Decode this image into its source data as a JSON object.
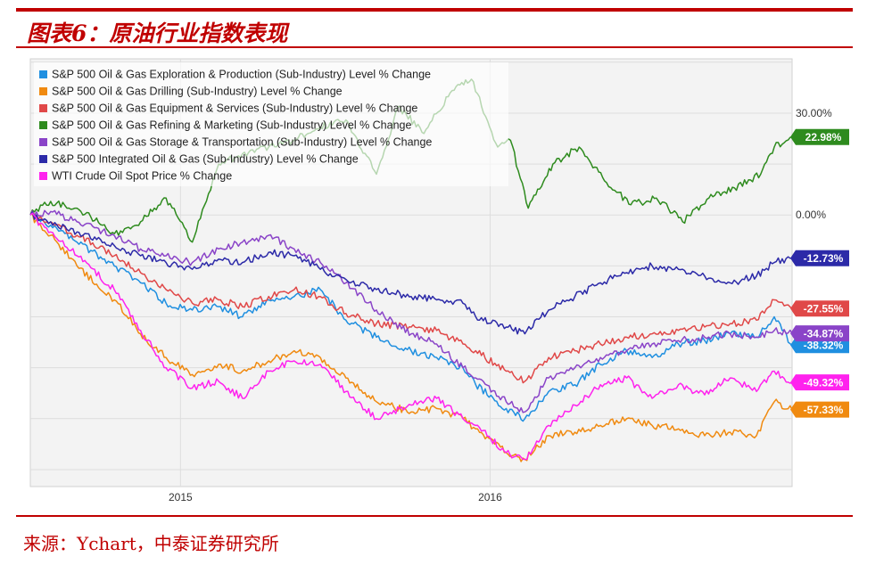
{
  "figure_title": "图表6：原油行业指数表现",
  "source": "来源：Ychart，中泰证券研究所",
  "chart_data": {
    "type": "line",
    "title": "",
    "xlabel": "",
    "ylabel": "",
    "y_unit": "%",
    "ylim": [
      -80,
      46
    ],
    "x_ticks": [
      "2015",
      "2016"
    ],
    "y_ticks": [
      {
        "value": 30,
        "label": "30.00%"
      },
      {
        "value": 0,
        "label": "0.00%"
      }
    ],
    "grid": true,
    "legend_position": "top-left",
    "x_range": [
      "2014-07-08",
      "2016-12-22"
    ],
    "series": [
      {
        "name": "S&P 500 Oil & Gas Exploration & Production (Sub-Industry) Level % Change",
        "color": "#1f8fe0",
        "end_label": "-38.32%",
        "x": [
          "2014-07-08",
          "2014-08-01",
          "2014-09-01",
          "2014-10-15",
          "2014-11-15",
          "2014-12-15",
          "2015-01-15",
          "2015-02-15",
          "2015-03-15",
          "2015-04-15",
          "2015-05-15",
          "2015-06-15",
          "2015-07-15",
          "2015-08-20",
          "2015-09-30",
          "2015-10-30",
          "2015-11-30",
          "2015-12-15",
          "2016-01-20",
          "2016-02-11",
          "2016-03-10",
          "2016-04-10",
          "2016-05-10",
          "2016-06-10",
          "2016-07-10",
          "2016-08-10",
          "2016-09-10",
          "2016-10-10",
          "2016-11-10",
          "2016-12-01",
          "2016-12-22"
        ],
        "y": [
          0,
          -3,
          -8,
          -15,
          -20,
          -26,
          -28,
          -27,
          -30,
          -25,
          -24,
          -22,
          -31,
          -36,
          -40,
          -42,
          -45,
          -50,
          -57,
          -60,
          -52,
          -50,
          -44,
          -40,
          -42,
          -38,
          -37,
          -35,
          -36,
          -30,
          -38.32
        ]
      },
      {
        "name": "S&P 500 Oil & Gas Drilling (Sub-Industry) Level % Change",
        "color": "#f08a10",
        "end_label": "-57.33%",
        "x": [
          "2014-07-08",
          "2014-08-01",
          "2014-09-01",
          "2014-10-15",
          "2014-11-15",
          "2014-12-15",
          "2015-01-15",
          "2015-02-15",
          "2015-03-15",
          "2015-04-15",
          "2015-05-15",
          "2015-06-15",
          "2015-07-15",
          "2015-08-20",
          "2015-09-30",
          "2015-10-30",
          "2015-11-30",
          "2015-12-15",
          "2016-01-20",
          "2016-02-11",
          "2016-03-10",
          "2016-04-10",
          "2016-05-10",
          "2016-06-10",
          "2016-07-10",
          "2016-08-10",
          "2016-09-10",
          "2016-10-10",
          "2016-11-10",
          "2016-12-01",
          "2016-12-22"
        ],
        "y": [
          0,
          -6,
          -15,
          -25,
          -35,
          -42,
          -47,
          -44,
          -46,
          -43,
          -40,
          -42,
          -48,
          -55,
          -58,
          -57,
          -60,
          -63,
          -70,
          -72,
          -65,
          -64,
          -62,
          -60,
          -62,
          -63,
          -65,
          -64,
          -65,
          -55,
          -57.33
        ]
      },
      {
        "name": "S&P 500 Oil & Gas Equipment & Services (Sub-Industry) Level % Change",
        "color": "#e04848",
        "end_label": "-27.55%",
        "x": [
          "2014-07-08",
          "2014-08-01",
          "2014-09-01",
          "2014-10-15",
          "2014-11-15",
          "2014-12-15",
          "2015-01-15",
          "2015-02-15",
          "2015-03-15",
          "2015-04-15",
          "2015-05-15",
          "2015-06-15",
          "2015-07-15",
          "2015-08-20",
          "2015-09-30",
          "2015-10-30",
          "2015-11-30",
          "2015-12-15",
          "2016-01-20",
          "2016-02-11",
          "2016-03-10",
          "2016-04-10",
          "2016-05-10",
          "2016-06-10",
          "2016-07-10",
          "2016-08-10",
          "2016-09-10",
          "2016-10-10",
          "2016-11-10",
          "2016-12-01",
          "2016-12-22"
        ],
        "y": [
          0,
          -2,
          -6,
          -12,
          -17,
          -22,
          -26,
          -25,
          -27,
          -24,
          -22,
          -24,
          -29,
          -32,
          -33,
          -34,
          -38,
          -40,
          -46,
          -49,
          -42,
          -40,
          -38,
          -36,
          -35,
          -34,
          -33,
          -32,
          -31,
          -25,
          -27.55
        ]
      },
      {
        "name": "S&P 500 Oil & Gas Refining & Marketing (Sub-Industry) Level % Change",
        "color": "#2e8b1e",
        "end_label": "22.98%",
        "x": [
          "2014-07-08",
          "2014-08-01",
          "2014-09-01",
          "2014-10-01",
          "2014-10-20",
          "2014-11-15",
          "2014-12-15",
          "2015-01-15",
          "2015-02-15",
          "2015-03-15",
          "2015-04-15",
          "2015-05-15",
          "2015-06-15",
          "2015-07-15",
          "2015-08-20",
          "2015-09-15",
          "2015-10-15",
          "2015-11-15",
          "2015-12-10",
          "2016-01-10",
          "2016-01-25",
          "2016-02-15",
          "2016-03-15",
          "2016-04-15",
          "2016-05-15",
          "2016-06-15",
          "2016-07-15",
          "2016-08-15",
          "2016-09-15",
          "2016-10-15",
          "2016-11-15",
          "2016-12-01",
          "2016-12-22"
        ],
        "y": [
          0,
          4,
          2,
          -3,
          -6,
          -2,
          5,
          -8,
          15,
          18,
          20,
          22,
          26,
          28,
          12,
          32,
          24,
          36,
          40,
          20,
          22,
          2,
          15,
          20,
          10,
          3,
          5,
          -2,
          5,
          8,
          12,
          20,
          22.98
        ]
      },
      {
        "name": "S&P 500 Oil & Gas Storage & Transportation (Sub-Industry) Level % Change",
        "color": "#8a44c8",
        "end_label": "-34.87%",
        "x": [
          "2014-07-08",
          "2014-08-01",
          "2014-09-01",
          "2014-10-15",
          "2014-11-15",
          "2014-12-15",
          "2015-01-15",
          "2015-02-15",
          "2015-03-15",
          "2015-04-15",
          "2015-05-15",
          "2015-06-15",
          "2015-07-15",
          "2015-08-20",
          "2015-09-30",
          "2015-10-30",
          "2015-11-30",
          "2015-12-15",
          "2016-01-20",
          "2016-02-11",
          "2016-03-10",
          "2016-04-10",
          "2016-05-10",
          "2016-06-10",
          "2016-07-10",
          "2016-08-10",
          "2016-09-10",
          "2016-10-10",
          "2016-11-10",
          "2016-12-01",
          "2016-12-22"
        ],
        "y": [
          0,
          1,
          -2,
          -6,
          -10,
          -12,
          -14,
          -10,
          -8,
          -6,
          -10,
          -14,
          -20,
          -28,
          -35,
          -38,
          -45,
          -48,
          -55,
          -58,
          -48,
          -45,
          -42,
          -40,
          -38,
          -37,
          -36,
          -35,
          -36,
          -34,
          -34.87
        ]
      },
      {
        "name": "S&P 500 Integrated Oil & Gas (Sub-Industry) Level % Change",
        "color": "#2c2aa8",
        "end_label": "-12.73%",
        "x": [
          "2014-07-08",
          "2014-08-01",
          "2014-09-01",
          "2014-10-15",
          "2014-11-15",
          "2014-12-15",
          "2015-01-15",
          "2015-02-15",
          "2015-03-15",
          "2015-04-15",
          "2015-05-15",
          "2015-06-15",
          "2015-07-15",
          "2015-08-20",
          "2015-09-30",
          "2015-10-30",
          "2015-11-30",
          "2015-12-15",
          "2016-01-20",
          "2016-02-11",
          "2016-03-10",
          "2016-04-10",
          "2016-05-10",
          "2016-06-10",
          "2016-07-10",
          "2016-08-10",
          "2016-09-10",
          "2016-10-10",
          "2016-11-10",
          "2016-12-01",
          "2016-12-22"
        ],
        "y": [
          0,
          -2,
          -5,
          -9,
          -12,
          -14,
          -16,
          -13,
          -14,
          -11,
          -12,
          -16,
          -19,
          -22,
          -24,
          -25,
          -26,
          -30,
          -33,
          -35,
          -28,
          -24,
          -20,
          -17,
          -15,
          -16,
          -18,
          -20,
          -18,
          -14,
          -12.73
        ]
      },
      {
        "name": "WTI Crude Oil Spot Price % Change",
        "color": "#ff22ee",
        "end_label": "-49.32%",
        "x": [
          "2014-07-08",
          "2014-08-01",
          "2014-09-01",
          "2014-10-15",
          "2014-11-15",
          "2014-12-15",
          "2015-01-15",
          "2015-02-15",
          "2015-03-15",
          "2015-04-15",
          "2015-05-15",
          "2015-06-15",
          "2015-07-15",
          "2015-08-20",
          "2015-09-30",
          "2015-10-30",
          "2015-11-30",
          "2015-12-15",
          "2016-01-20",
          "2016-02-11",
          "2016-03-10",
          "2016-04-10",
          "2016-05-10",
          "2016-06-10",
          "2016-07-10",
          "2016-08-10",
          "2016-09-10",
          "2016-10-10",
          "2016-11-10",
          "2016-12-01",
          "2016-12-22"
        ],
        "y": [
          0,
          -5,
          -12,
          -22,
          -34,
          -45,
          -51,
          -49,
          -54,
          -46,
          -43,
          -44,
          -52,
          -60,
          -56,
          -54,
          -60,
          -62,
          -70,
          -72,
          -62,
          -56,
          -50,
          -48,
          -54,
          -50,
          -53,
          -48,
          -52,
          -46,
          -49.32
        ]
      }
    ]
  }
}
